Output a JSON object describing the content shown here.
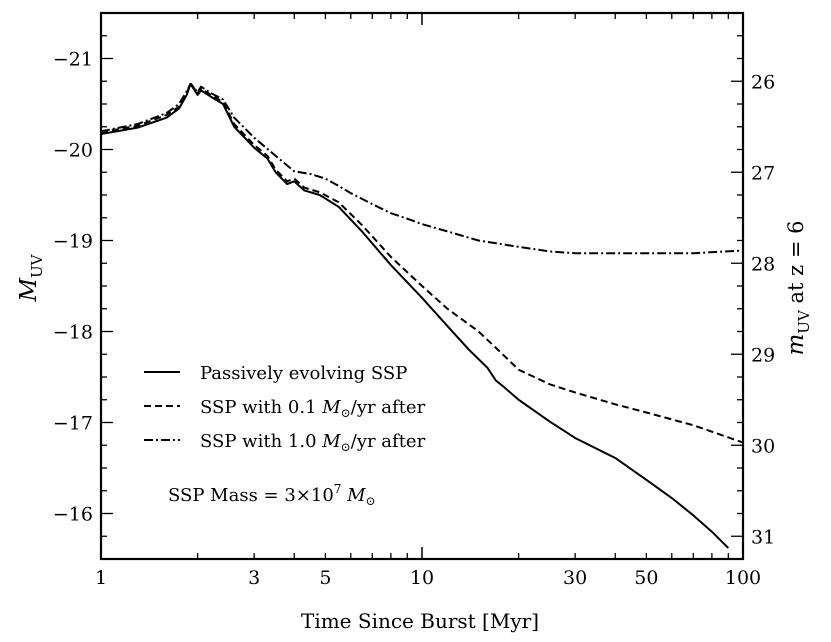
{
  "chart_data": {
    "type": "line",
    "x_scale": "log",
    "xlabel": "Time Since Burst [Myr]",
    "ylabel_left_base": "M",
    "ylabel_left_sub": "UV",
    "ylabel_right_base": "m",
    "ylabel_right_sub": "UV",
    "ylabel_right_suffix": " at z = 6",
    "xlim": [
      1,
      100
    ],
    "ylim_left": [
      -15.5,
      -21.5
    ],
    "x_ticks": [
      1,
      3,
      5,
      10,
      30,
      50,
      100
    ],
    "x_tick_labels": [
      "1",
      "3",
      "5",
      "10",
      "30",
      "50",
      "100"
    ],
    "y_ticks_left": [
      -21,
      -20,
      -19,
      -18,
      -17,
      -16
    ],
    "y_tick_labels_left": [
      "−21",
      "−20",
      "−19",
      "−18",
      "−17",
      "−16"
    ],
    "right_axis_offset": 46.75,
    "y_ticks_right": [
      26,
      27,
      28,
      29,
      30,
      31
    ],
    "y_tick_labels_right": [
      "26",
      "27",
      "28",
      "29",
      "30",
      "31"
    ],
    "series": [
      {
        "name": "Passively evolving SSP",
        "style": "solid",
        "x": [
          1,
          1.3,
          1.6,
          1.75,
          1.85,
          1.9,
          2.0,
          2.05,
          2.2,
          2.4,
          2.6,
          3.0,
          3.3,
          3.5,
          3.8,
          4.0,
          4.3,
          4.8,
          5.5,
          6.5,
          8,
          10,
          12,
          14,
          16,
          17,
          18,
          20,
          25,
          30,
          40,
          50,
          60,
          70,
          80,
          90
        ],
        "y": [
          -20.17,
          -20.24,
          -20.35,
          -20.45,
          -20.6,
          -20.72,
          -20.6,
          -20.65,
          -20.58,
          -20.5,
          -20.25,
          -20.02,
          -19.9,
          -19.75,
          -19.62,
          -19.65,
          -19.55,
          -19.5,
          -19.37,
          -19.1,
          -18.73,
          -18.37,
          -18.06,
          -17.8,
          -17.6,
          -17.46,
          -17.39,
          -17.25,
          -17.01,
          -16.83,
          -16.61,
          -16.37,
          -16.17,
          -15.98,
          -15.8,
          -15.62
        ]
      },
      {
        "name": "SSP with 0.1 M⊙/yr after",
        "style": "dashed",
        "x": [
          1,
          1.3,
          1.6,
          1.75,
          1.85,
          1.9,
          2.0,
          2.05,
          2.2,
          2.4,
          2.6,
          3.0,
          3.3,
          3.5,
          3.8,
          4.0,
          4.3,
          4.8,
          5.5,
          6.5,
          8,
          10,
          12,
          15,
          17,
          20,
          25,
          30,
          40,
          50,
          70,
          100
        ],
        "y": [
          -20.19,
          -20.26,
          -20.38,
          -20.47,
          -20.62,
          -20.73,
          -20.62,
          -20.67,
          -20.6,
          -20.52,
          -20.28,
          -20.05,
          -19.93,
          -19.78,
          -19.65,
          -19.68,
          -19.58,
          -19.53,
          -19.42,
          -19.17,
          -18.82,
          -18.5,
          -18.25,
          -18.0,
          -17.82,
          -17.58,
          -17.42,
          -17.33,
          -17.2,
          -17.11,
          -16.97,
          -16.78
        ]
      },
      {
        "name": "SSP with 1.0 M⊙/yr after",
        "style": "dashdot",
        "x": [
          1,
          1.3,
          1.6,
          1.75,
          1.85,
          1.9,
          2.0,
          2.05,
          2.2,
          2.4,
          2.6,
          3.0,
          3.5,
          4.0,
          4.5,
          5.0,
          5.5,
          6.0,
          7,
          8,
          9,
          10,
          12,
          15,
          20,
          25,
          30,
          40,
          50,
          70,
          100
        ],
        "y": [
          -20.2,
          -20.28,
          -20.4,
          -20.5,
          -20.64,
          -20.72,
          -20.63,
          -20.69,
          -20.62,
          -20.55,
          -20.35,
          -20.13,
          -19.93,
          -19.76,
          -19.73,
          -19.68,
          -19.6,
          -19.52,
          -19.4,
          -19.3,
          -19.24,
          -19.18,
          -19.1,
          -19.0,
          -18.93,
          -18.88,
          -18.86,
          -18.86,
          -18.86,
          -18.86,
          -18.89
        ]
      }
    ],
    "legend": {
      "position": "lower-left",
      "entries": [
        {
          "style": "solid",
          "label": "Passively evolving SSP",
          "pre": "SSP",
          "sub": "",
          "full": "Passively evolving SSP"
        },
        {
          "style": "dashed",
          "label": "SSP with 0.1 M⊙/yr after",
          "pre": "SSP with 0.1 ",
          "mid": "M",
          "sub": "⊙",
          "post": "/yr after"
        },
        {
          "style": "dashdot",
          "label": "SSP with 1.0 M⊙/yr after",
          "pre": "SSP with 1.0 ",
          "mid": "M",
          "sub": "⊙",
          "post": "/yr after"
        }
      ]
    },
    "annotation": {
      "pre": "SSP Mass = 3×10",
      "sup": "7",
      "mid": " M",
      "sub": "⊙"
    }
  }
}
